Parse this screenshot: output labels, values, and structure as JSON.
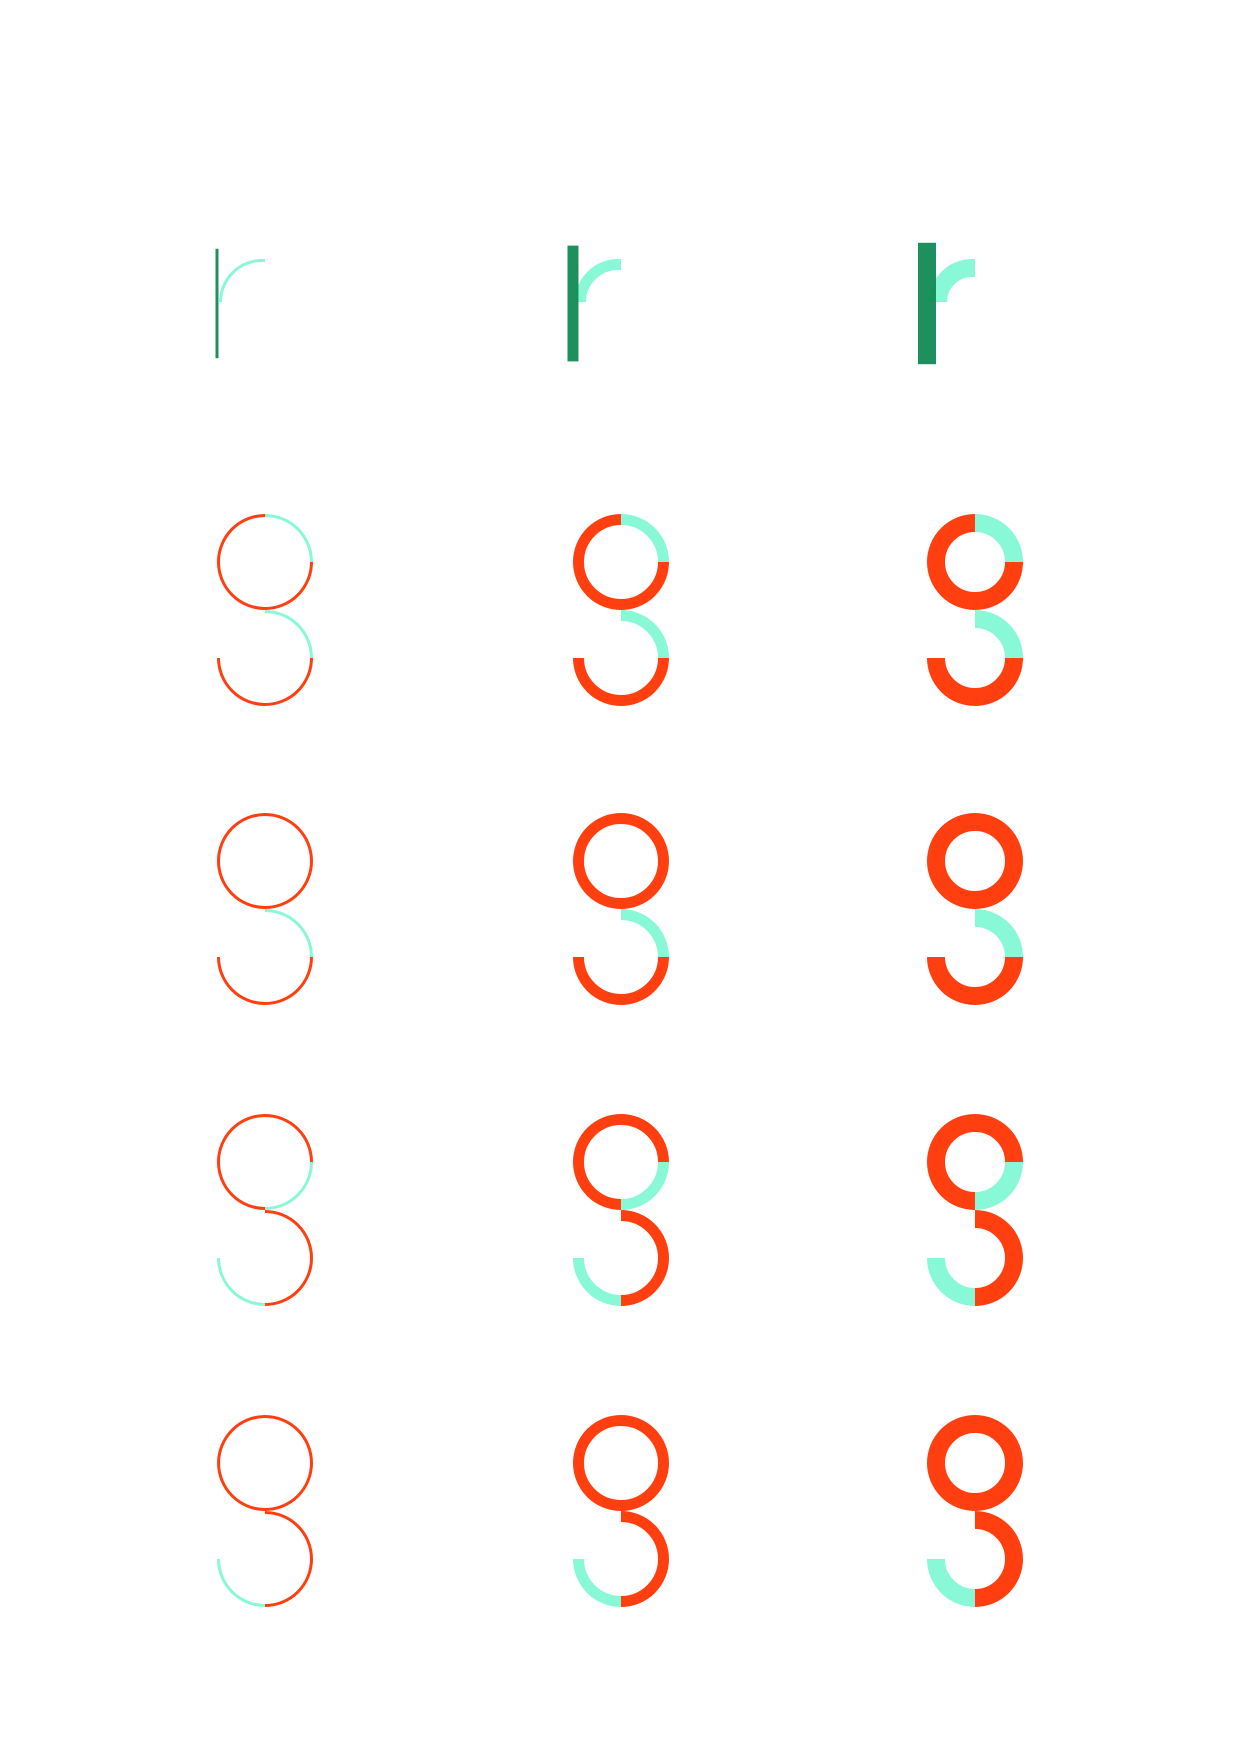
{
  "sheet": {
    "description_visible_text": "",
    "colors": {
      "background": "#ffffff",
      "red": "#ff3f0f",
      "mint": "#88f8d7",
      "green": "#128a55"
    },
    "weights": [
      "thin",
      "medium",
      "bold"
    ],
    "glyphs": [
      {
        "letter": "r",
        "variant": 1,
        "stem_color": "green",
        "arc_color": "mint"
      },
      {
        "letter": "s",
        "variant": 1,
        "segments": [
          "red",
          "mint",
          "red",
          "mint",
          "red",
          "red"
        ]
      },
      {
        "letter": "s",
        "variant": 2,
        "segments": [
          "red",
          "red",
          "red",
          "mint",
          "red",
          "red"
        ]
      },
      {
        "letter": "s",
        "variant": 3,
        "segments": [
          "red",
          "red",
          "mint",
          "red",
          "red",
          "mint"
        ]
      },
      {
        "letter": "s",
        "variant": 4,
        "segments": [
          "red",
          "red",
          "red",
          "red",
          "red",
          "mint"
        ]
      }
    ]
  }
}
